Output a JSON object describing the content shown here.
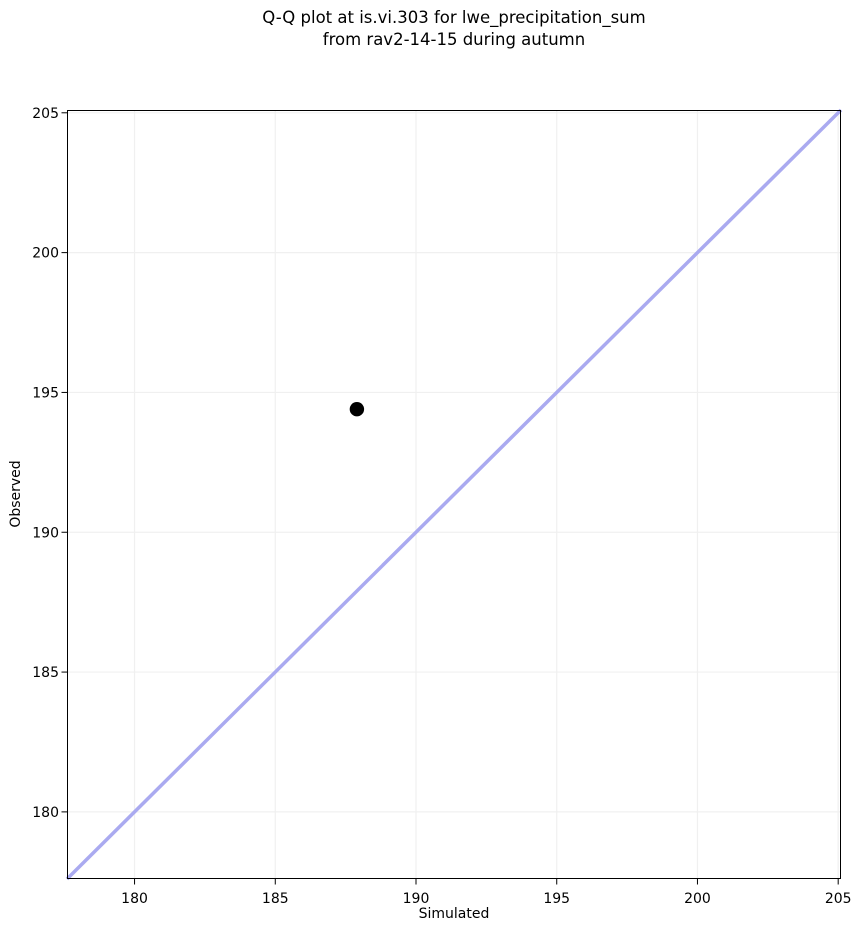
{
  "chart_data": {
    "type": "scatter",
    "title": "Q-Q plot at is.vi.303 for lwe_precipitation_sum\nfrom rav2-14-15 during autumn",
    "title_lines": [
      "Q-Q plot at is.vi.303 for lwe_precipitation_sum",
      "from rav2-14-15 during autumn"
    ],
    "xlabel": "Simulated",
    "ylabel": "Observed",
    "xlim": [
      177.6,
      205.1
    ],
    "ylim": [
      177.6,
      205.1
    ],
    "x_ticks": [
      180,
      185,
      190,
      195,
      200,
      205
    ],
    "y_ticks": [
      180,
      185,
      190,
      195,
      200,
      205
    ],
    "grid": true,
    "legend": "none",
    "points": [
      {
        "x": 187.9,
        "y": 194.4
      }
    ],
    "identity_line": {
      "x1": 177.6,
      "y1": 177.6,
      "x2": 205.1,
      "y2": 205.1
    },
    "colors": {
      "point": "#000000",
      "identity_line": "#aaaaf0",
      "grid": "#f0f0f0",
      "spine": "#000000",
      "background": "#ffffff",
      "text": "#000000"
    }
  }
}
